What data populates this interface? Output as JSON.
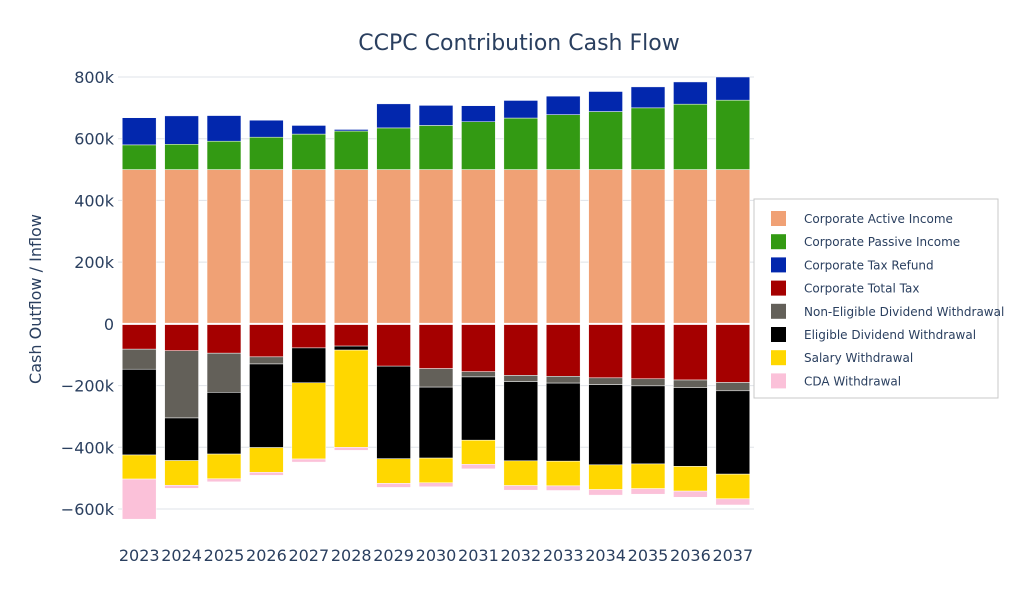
{
  "chart_data": {
    "type": "bar",
    "barmode": "relative",
    "title": "CCPC Contribution Cash Flow",
    "xlabel": "",
    "ylabel": "Cash Outflow / Inflow",
    "ylim": [
      -640000,
      800000
    ],
    "yticks": [
      -600000,
      -400000,
      -200000,
      0,
      200000,
      400000,
      600000,
      800000
    ],
    "ytick_labels": [
      "−600k",
      "−400k",
      "−200k",
      "0",
      "200k",
      "400k",
      "600k",
      "800k"
    ],
    "grid": true,
    "legend_position": "right",
    "categories": [
      "2023",
      "2024",
      "2025",
      "2026",
      "2027",
      "2028",
      "2029",
      "2030",
      "2031",
      "2032",
      "2033",
      "2034",
      "2035",
      "2036",
      "2037"
    ],
    "series": [
      {
        "name": "Corporate Active Income",
        "color": "#f0a175",
        "values": [
          500000,
          500000,
          500000,
          500000,
          500000,
          500000,
          500000,
          500000,
          500000,
          500000,
          500000,
          500000,
          500000,
          500000,
          500000
        ]
      },
      {
        "name": "Corporate Passive Income",
        "color": "#339a13",
        "values": [
          80000,
          82000,
          92000,
          105000,
          115000,
          125000,
          135000,
          143000,
          155000,
          167000,
          178000,
          188000,
          200000,
          212000,
          225000
        ]
      },
      {
        "name": "Corporate Tax Refund",
        "color": "#0227ad",
        "values": [
          88000,
          92000,
          83000,
          55000,
          28000,
          5000,
          78000,
          65000,
          52000,
          57000,
          60000,
          65000,
          68000,
          72000,
          75000
        ]
      },
      {
        "name": "Corporate Total Tax",
        "color": "#a50000",
        "values": [
          -82000,
          -87000,
          -95000,
          -107000,
          -78000,
          -72000,
          -137000,
          -145000,
          -155000,
          -167000,
          -170000,
          -175000,
          -178000,
          -182000,
          -190000
        ]
      },
      {
        "name": "Non-Eligible Dividend Withdrawal",
        "color": "#636059",
        "values": [
          -65000,
          -218000,
          -127000,
          -23000,
          0,
          0,
          0,
          -60000,
          -17000,
          -20000,
          -22000,
          -22000,
          -23000,
          -25000,
          -27000
        ]
      },
      {
        "name": "Eligible Dividend Withdrawal",
        "color": "#000000",
        "values": [
          -278000,
          -138000,
          -200000,
          -271000,
          -113000,
          -13000,
          -300000,
          -230000,
          -205000,
          -257000,
          -253000,
          -260000,
          -253000,
          -255000,
          -270000
        ]
      },
      {
        "name": "Salary Withdrawal",
        "color": "#ffd700",
        "values": [
          -78000,
          -80000,
          -80000,
          -80000,
          -247000,
          -315000,
          -80000,
          -80000,
          -78000,
          -80000,
          -80000,
          -80000,
          -80000,
          -80000,
          -80000
        ]
      },
      {
        "name": "CDA Withdrawal",
        "color": "#fbc1d9",
        "values": [
          -130000,
          -10000,
          -10000,
          -10000,
          -10000,
          -10000,
          -13000,
          -13000,
          -15000,
          -15000,
          -15000,
          -18000,
          -18000,
          -20000,
          -20000
        ]
      }
    ]
  }
}
